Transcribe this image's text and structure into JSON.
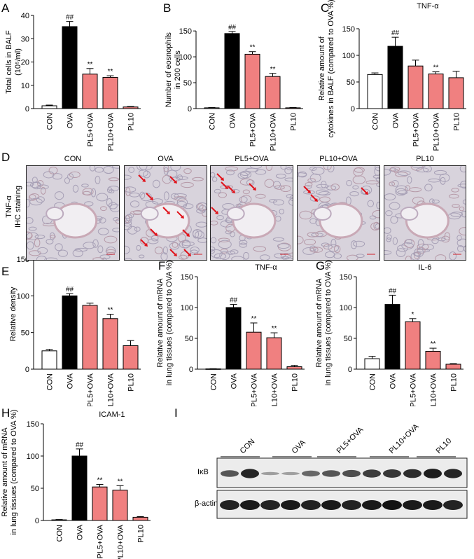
{
  "colors": {
    "con": "#ffffff",
    "ova": "#000000",
    "treat": "#f08080",
    "pl10": "#f08080",
    "arrow": "#e0141c",
    "edge": "#000000"
  },
  "panels": {
    "A": "A",
    "B": "B",
    "C": "C",
    "D": "D",
    "E": "E",
    "F": "F",
    "G": "G",
    "H": "H",
    "I": "I"
  },
  "chart_data": [
    {
      "id": "A",
      "type": "bar",
      "categories": [
        "CON",
        "OVA",
        "PL5+OVA",
        "PL10+OVA",
        "PL10"
      ],
      "values": [
        1.2,
        35.2,
        14.8,
        13.4,
        0.7
      ],
      "errors": [
        0.3,
        2.2,
        2.4,
        0.7,
        0.2
      ],
      "marks": [
        "",
        "##",
        "**",
        "**",
        ""
      ],
      "ylabel": "Total cells in BALF (10⁵/ml)",
      "yticks": [
        0,
        10,
        20,
        30,
        40
      ],
      "ylim": [
        0,
        40
      ],
      "title": ""
    },
    {
      "id": "B",
      "type": "bar",
      "categories": [
        "CON",
        "OVA",
        "PL5+OVA",
        "PL10+OVA",
        "PL10"
      ],
      "values": [
        1.5,
        145,
        105,
        62,
        1.5
      ],
      "errors": [
        0.5,
        4,
        5,
        6,
        0.5
      ],
      "marks": [
        "",
        "##",
        "**",
        "**",
        ""
      ],
      "ylabel": "Number of eosnophils in 200 cells",
      "yticks": [
        0,
        50,
        100,
        150
      ],
      "ylim": [
        0,
        180
      ],
      "title": ""
    },
    {
      "id": "C",
      "type": "bar",
      "categories": [
        "CON",
        "OVA",
        "PL5+OVA",
        "PL10+OVA",
        "PL10"
      ],
      "values": [
        64,
        117,
        80,
        65,
        58
      ],
      "errors": [
        3,
        17,
        11,
        4,
        12
      ],
      "marks": [
        "",
        "##",
        "",
        "**",
        ""
      ],
      "ylabel": "Relative amount of cytokines in BALF (compared to OVA %)",
      "yticks": [
        0,
        50,
        100,
        150
      ],
      "ylim": [
        0,
        175
      ],
      "title": "TNF-α"
    },
    {
      "id": "E",
      "type": "bar",
      "categories": [
        "CON",
        "OVA",
        "PL5+OVA",
        "PL10+OVA",
        "PL10"
      ],
      "values": [
        25,
        100,
        87,
        69,
        32
      ],
      "errors": [
        2,
        3,
        3,
        6,
        7
      ],
      "marks": [
        "",
        "##",
        "",
        "**",
        ""
      ],
      "ylabel": "Relative density",
      "yticks": [
        0,
        50,
        100,
        150
      ],
      "ylim": [
        0,
        150
      ],
      "title": ""
    },
    {
      "id": "F",
      "type": "bar",
      "categories": [
        "CON",
        "OVA",
        "PL5+OVA",
        "PL10+OVA",
        "PL10"
      ],
      "values": [
        0.5,
        100,
        60,
        51,
        4
      ],
      "errors": [
        0.3,
        5,
        15,
        8,
        2
      ],
      "marks": [
        "",
        "##",
        "**",
        "**",
        ""
      ],
      "ylabel": "Relative amount of mRNA in lung tissues (compared to OVA %)",
      "yticks": [
        0,
        50,
        100,
        150
      ],
      "ylim": [
        0,
        150
      ],
      "title": "TNF-α"
    },
    {
      "id": "G",
      "type": "bar",
      "categories": [
        "CON",
        "OVA",
        "PL5+OVA",
        "PL10+OVA",
        "PL10"
      ],
      "values": [
        17,
        105,
        77,
        29,
        8
      ],
      "errors": [
        4,
        15,
        5,
        5,
        1
      ],
      "marks": [
        "",
        "##",
        "*",
        "**",
        ""
      ],
      "ylabel": "Relative amount of mRNA in lung tissues (compared to OVA %)",
      "yticks": [
        0,
        50,
        100,
        150
      ],
      "ylim": [
        0,
        150
      ],
      "title": "IL-6"
    },
    {
      "id": "H",
      "type": "bar",
      "categories": [
        "CON",
        "OVA",
        "PL5+OVA",
        "PL10+OVA",
        "PL10"
      ],
      "values": [
        1,
        100,
        52,
        47,
        5
      ],
      "errors": [
        0.5,
        11,
        4,
        7,
        1
      ],
      "marks": [
        "",
        "##",
        "**",
        "**",
        ""
      ],
      "ylabel": "Relative amount of mRNA in lung tissues (compared to OVA %)",
      "yticks": [
        0,
        50,
        100,
        150
      ],
      "ylim": [
        0,
        150
      ],
      "title": "ICAM-1"
    }
  ],
  "ihc": {
    "ylabel": "TNF-α IHC staining",
    "titles": [
      "CON",
      "OVA",
      "PL5+OVA",
      "PL10+OVA",
      "PL10"
    ]
  },
  "blot": {
    "groups": [
      "CON",
      "OVA",
      "PL5+OVA",
      "PL10+OVA",
      "PL10"
    ],
    "rows": [
      "IκB",
      "β-actin"
    ]
  }
}
